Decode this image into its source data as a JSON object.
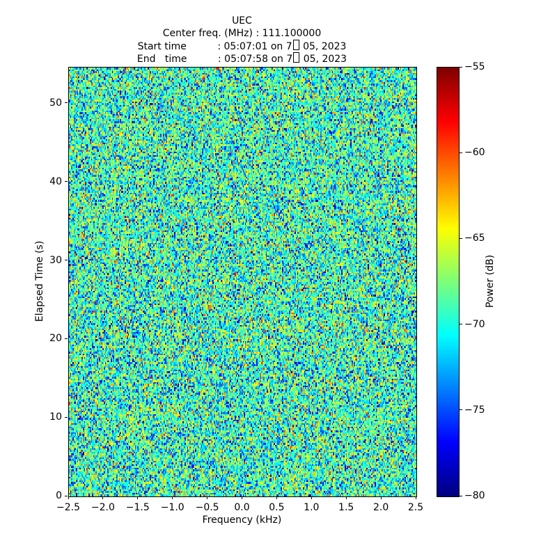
{
  "header": {
    "title": "UEC",
    "center_freq_line": "Center freq. (MHz) : 111.100000",
    "start_pre": "Start time          : 05:07:01 on 7",
    "start_post": " 05, 2023",
    "end_pre": "End   time          : 05:07:58 on 7",
    "end_post": " 05, 2023"
  },
  "chart_data": {
    "type": "heatmap",
    "title": "UEC",
    "subtitle_lines": [
      "Center freq. (MHz) : 111.100000",
      "Start time          : 05:07:01 on 7□ 05, 2023",
      "End   time          : 05:07:58 on 7□ 05, 2023"
    ],
    "xlabel": "Frequency (kHz)",
    "ylabel": "Elapsed Time (s)",
    "colorbar_label": "Power (dB)",
    "xlim": [
      -2.5,
      2.5
    ],
    "ylim": [
      0,
      54.6
    ],
    "clim": [
      -80,
      -55
    ],
    "x_ticks": [
      -2.5,
      -2.0,
      -1.5,
      -1.0,
      -0.5,
      0.0,
      0.5,
      1.0,
      1.5,
      2.0,
      2.5
    ],
    "x_tick_labels": [
      "−2.5",
      "−2.0",
      "−1.5",
      "−1.0",
      "−0.5",
      "0.0",
      "0.5",
      "1.0",
      "1.5",
      "2.0",
      "2.5"
    ],
    "y_ticks": [
      0,
      10,
      20,
      30,
      40,
      50
    ],
    "y_tick_labels": [
      "0",
      "10",
      "20",
      "30",
      "40",
      "50"
    ],
    "colorbar_ticks": [
      -55,
      -60,
      -65,
      -70,
      -75,
      -80
    ],
    "colorbar_tick_labels": [
      "−55",
      "−60",
      "−65",
      "−70",
      "−75",
      "−80"
    ],
    "grid": "off",
    "legend": "none",
    "colormap": {
      "name": "jet",
      "stops": [
        "#000080",
        "#0000ff",
        "#0080ff",
        "#00ffff",
        "#7dff7a",
        "#ffff00",
        "#ff8000",
        "#ff0000",
        "#800000"
      ]
    },
    "noise": {
      "description": "broadband random noise, no visible signal structure",
      "mean_db": -69.3,
      "std_db": 4.0,
      "grid": [
        300,
        240
      ],
      "seed": 42
    }
  },
  "colors": {
    "background": "#ffffff",
    "text": "#000000",
    "spine": "#000000"
  }
}
